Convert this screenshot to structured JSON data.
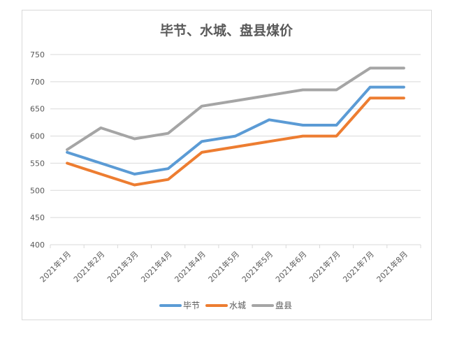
{
  "chart_data": {
    "type": "line",
    "title": "毕节、水城、盘县煤价",
    "xlabel": "",
    "ylabel": "",
    "categories": [
      "2021年1月",
      "2021年2月",
      "2021年3月",
      "2021年4月",
      "2021年4月",
      "2021年5月",
      "2021年5月",
      "2021年6月",
      "2021年7月",
      "2021年7月",
      "2021年8月"
    ],
    "ylim": [
      400,
      750
    ],
    "yticks": [
      400,
      450,
      500,
      550,
      600,
      650,
      700,
      750
    ],
    "grid": true,
    "legend_position": "bottom",
    "series": [
      {
        "name": "毕节",
        "color": "#5b9bd5",
        "values": [
          570,
          550,
          530,
          540,
          590,
          600,
          630,
          620,
          620,
          690,
          690
        ]
      },
      {
        "name": "水城",
        "color": "#ed7d31",
        "values": [
          550,
          530,
          510,
          520,
          570,
          580,
          590,
          600,
          600,
          670,
          670
        ]
      },
      {
        "name": "盘县",
        "color": "#a5a5a5",
        "values": [
          575,
          615,
          595,
          605,
          655,
          665,
          675,
          685,
          685,
          725,
          725
        ]
      }
    ]
  }
}
